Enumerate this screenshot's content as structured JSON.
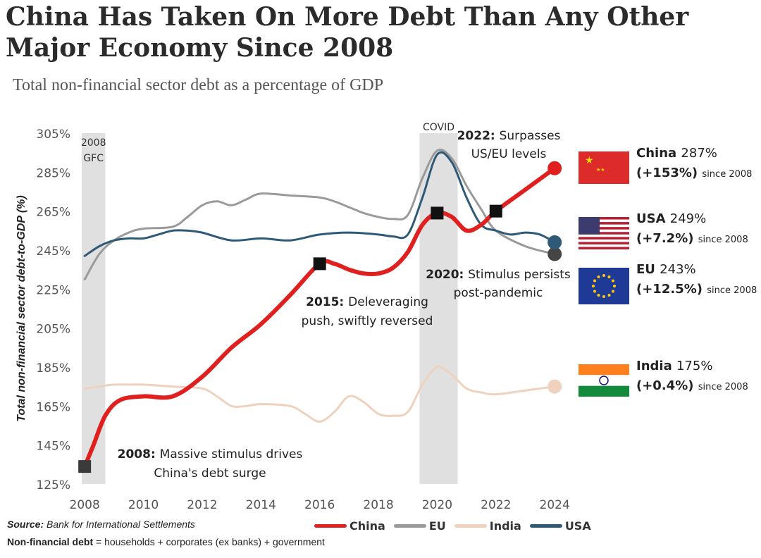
{
  "title": "China Has Taken On More Debt Than Any Other Major Economy Since 2008",
  "subtitle": "Total non-financial sector debt as a percentage of GDP",
  "source_label": "Source:",
  "source_text": "Bank for International Settlements",
  "definition_label": "Non-financial debt",
  "definition_text": "= households + corporates (ex banks) + government",
  "colors": {
    "china": "#e0201e",
    "eu": "#9a9a9a",
    "india": "#efd2bd",
    "usa": "#2e5a78",
    "band": "#e0e0e0"
  },
  "chart_data": {
    "type": "line",
    "title": "China Has Taken On More Debt Than Any Other Major Economy Since 2008",
    "xlabel": "",
    "ylabel": "Total non-financial sector debt-to-GDP (%)",
    "xlim": [
      2007.9,
      2024.5
    ],
    "ylim": [
      125,
      305
    ],
    "x_ticks": [
      2008,
      2010,
      2012,
      2014,
      2016,
      2018,
      2020,
      2022,
      2024
    ],
    "x_tick_labels": [
      "2008",
      "2010",
      "2012",
      "2014",
      "2016",
      "2018",
      "2020",
      "2022",
      "2024"
    ],
    "y_ticks": [
      125,
      145,
      165,
      185,
      205,
      225,
      245,
      265,
      285,
      305
    ],
    "y_tick_labels": [
      "125%",
      "145%",
      "165%",
      "185%",
      "205%",
      "225%",
      "245%",
      "265%",
      "285%",
      "305%"
    ],
    "shaded_regions": [
      {
        "label_line1": "2008",
        "label_line2": "GFC",
        "x_start": 2007.9,
        "x_end": 2008.7
      },
      {
        "label_line1": "COVID",
        "label_line2": "",
        "x_start": 2019.4,
        "x_end": 2020.7
      }
    ],
    "series": [
      {
        "name": "China",
        "key": "china",
        "x": [
          2008,
          2008.3,
          2008.7,
          2009.2,
          2010,
          2011,
          2012,
          2013,
          2014,
          2015,
          2016,
          2016.5,
          2017,
          2017.5,
          2018,
          2018.5,
          2019,
          2019.5,
          2020,
          2020.5,
          2021,
          2021.5,
          2022,
          2023,
          2024
        ],
        "values": [
          134,
          145,
          160,
          168,
          170,
          170,
          180,
          195,
          207,
          222,
          238,
          238,
          235,
          233,
          233,
          236,
          244,
          258,
          264,
          262,
          255,
          258,
          265,
          276,
          287
        ]
      },
      {
        "name": "EU",
        "key": "eu",
        "x": [
          2008,
          2008.5,
          2009,
          2009.5,
          2010,
          2011,
          2011.5,
          2012,
          2012.5,
          2013,
          2013.5,
          2014,
          2015,
          2016,
          2016.5,
          2017,
          2017.5,
          2018,
          2018.5,
          2019,
          2019.5,
          2020,
          2020.5,
          2021,
          2021.5,
          2022,
          2023,
          2024
        ],
        "values": [
          230,
          243,
          250,
          254,
          256,
          257,
          262,
          268,
          270,
          268,
          271,
          274,
          273,
          272,
          270,
          267,
          264,
          262,
          261,
          263,
          282,
          296,
          292,
          278,
          266,
          255,
          247,
          243
        ]
      },
      {
        "name": "India",
        "key": "india",
        "x": [
          2008,
          2008.5,
          2009,
          2009.5,
          2010,
          2011,
          2012,
          2012.5,
          2013,
          2013.5,
          2014,
          2015,
          2015.5,
          2016,
          2016.5,
          2017,
          2017.5,
          2018,
          2018.5,
          2019,
          2019.5,
          2020,
          2020.5,
          2021,
          2021.5,
          2022,
          2023,
          2024
        ],
        "values": [
          174,
          175,
          176,
          176,
          176,
          175,
          174,
          170,
          165,
          165,
          166,
          165,
          161,
          157,
          162,
          170,
          167,
          161,
          160,
          162,
          176,
          185,
          181,
          174,
          172,
          171,
          173,
          175
        ]
      },
      {
        "name": "USA",
        "key": "usa",
        "x": [
          2008,
          2008.5,
          2009,
          2009.5,
          2010,
          2010.5,
          2011,
          2011.5,
          2012,
          2013,
          2014,
          2015,
          2016,
          2017,
          2018,
          2018.5,
          2019,
          2019.5,
          2020,
          2020.5,
          2021,
          2021.5,
          2022,
          2022.5,
          2023,
          2023.5,
          2024
        ],
        "values": [
          242,
          247,
          250,
          251,
          251,
          253,
          255,
          255,
          254,
          250,
          251,
          250,
          253,
          254,
          253,
          252,
          253,
          272,
          294,
          290,
          272,
          258,
          255,
          253,
          254,
          253,
          249
        ]
      }
    ],
    "endpoints": [
      {
        "key": "china",
        "year": 2024,
        "value": 287
      },
      {
        "key": "eu",
        "year": 2024,
        "value": 243
      },
      {
        "key": "usa",
        "year": 2024,
        "value": 249
      },
      {
        "key": "india",
        "year": 2024,
        "value": 175
      }
    ],
    "markers": [
      {
        "year": 2008,
        "value": 134
      },
      {
        "year": 2016,
        "value": 238
      },
      {
        "year": 2020,
        "value": 264
      },
      {
        "year": 2022,
        "value": 265
      }
    ],
    "annotations": [
      {
        "bold": "2008:",
        "text1": "Massive stimulus drives",
        "text2": "China's debt surge"
      },
      {
        "bold": "2015:",
        "text1": "Deleveraging",
        "text2": "push, swiftly reversed"
      },
      {
        "bold": "2020:",
        "text1": "Stimulus persists",
        "text2": "post-pandemic"
      },
      {
        "bold": "2022:",
        "text1": "Surpasses",
        "text2": "US/EU levels"
      }
    ],
    "legend": [
      "China",
      "EU",
      "India",
      "USA"
    ],
    "callouts": [
      {
        "country": "China",
        "value": "287%",
        "change": "(+153%)",
        "since": "since 2008",
        "flag": "china-flag"
      },
      {
        "country": "USA",
        "value": "249%",
        "change": "(+7.2%)",
        "since": "since 2008",
        "flag": "usa-flag"
      },
      {
        "country": "EU",
        "value": "243%",
        "change": "(+12.5%)",
        "since": "since 2008",
        "flag": "eu-flag"
      },
      {
        "country": "India",
        "value": "175%",
        "change": "(+0.4%)",
        "since": "since 2008",
        "flag": "india-flag"
      }
    ]
  }
}
